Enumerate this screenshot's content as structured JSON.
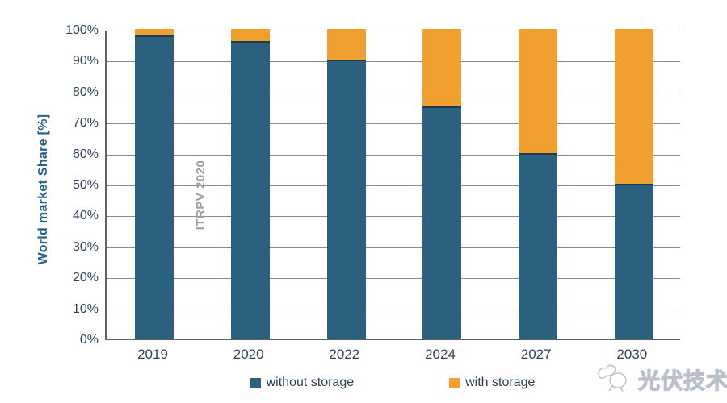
{
  "chart_data": {
    "type": "bar",
    "stacked": true,
    "categories": [
      "2019",
      "2020",
      "2022",
      "2024",
      "2027",
      "2030"
    ],
    "series": [
      {
        "name": "without storage",
        "color": "#2b607f",
        "values": [
          98,
          96,
          90,
          75,
          60,
          50
        ]
      },
      {
        "name": "with storage",
        "color": "#efa02f",
        "values": [
          2,
          4,
          10,
          25,
          40,
          50
        ]
      }
    ],
    "title": "",
    "xlabel": "",
    "ylabel": "World market Share [%]",
    "ylim": [
      0,
      100
    ],
    "ytick_step": 10,
    "ytick_suffix": "%",
    "grid": true,
    "legend_position": "bottom"
  },
  "watermarks": {
    "source_label": "ITRPV 2020",
    "brand_label": "光伏技术"
  },
  "colors": {
    "without_storage": "#2b607f",
    "with_storage": "#efa02f",
    "gridline": "#848a90",
    "axis": "#5a6168",
    "tick_text": "#33425b",
    "ylabel_text": "#26608a",
    "source_watermark_text": "#9aa0a6"
  }
}
